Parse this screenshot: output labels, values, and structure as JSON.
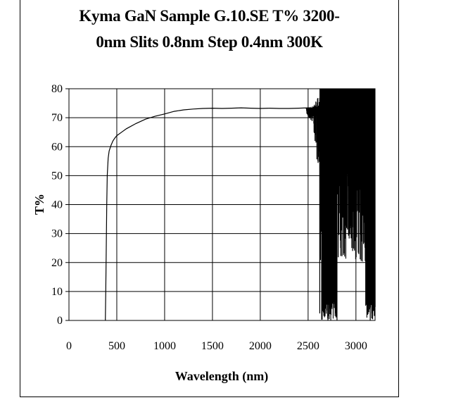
{
  "chart_data": {
    "type": "line",
    "title_lines": [
      "Kyma GaN Sample G.10.SE T%  3200-",
      "0nm Slits 0.8nm Step 0.4nm 300K"
    ],
    "xlabel": "Wavelength (nm)",
    "ylabel": "T%",
    "xlim": [
      0,
      3200
    ],
    "ylim": [
      0,
      80
    ],
    "xticks": [
      0,
      500,
      1000,
      1500,
      2000,
      2500,
      3000
    ],
    "yticks": [
      0,
      10,
      20,
      30,
      40,
      50,
      60,
      70,
      80
    ],
    "grid": true,
    "legend": "none",
    "series": [
      {
        "x": [
          380,
          385,
          390,
          395,
          400,
          410,
          420,
          440,
          460,
          480,
          500,
          550,
          600,
          700,
          800,
          900,
          1000,
          1100,
          1200,
          1300,
          1400,
          1500,
          1600,
          1700,
          1800,
          1900,
          2000,
          2100,
          2200,
          2300,
          2400,
          2500,
          2550,
          2600
        ],
        "y": [
          0,
          10,
          25,
          40,
          50,
          56,
          58.5,
          60.5,
          62,
          63,
          63.8,
          65,
          66.2,
          68,
          69.5,
          70.5,
          71.3,
          72.2,
          72.7,
          73,
          73.2,
          73.3,
          73.2,
          73.3,
          73.4,
          73.3,
          73.2,
          73.3,
          73.2,
          73.2,
          73.3,
          73.4,
          73.3,
          73.2
        ]
      }
    ]
  }
}
